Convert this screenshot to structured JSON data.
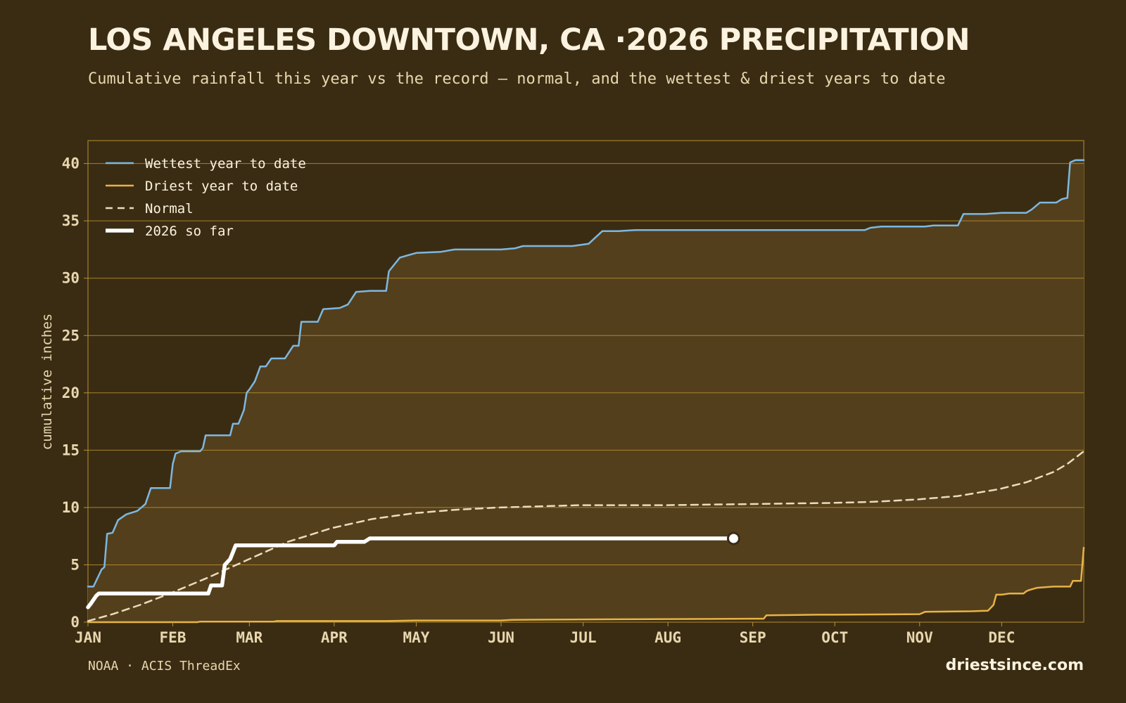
{
  "title": "LOS ANGELES DOWNTOWN, CA ·2026 PRECIPITATION",
  "subtitle": "Cumulative rainfall this year vs the record — normal, and the wettest & driest years to date",
  "footer": {
    "source": "NOAA · ACIS ThreadEx",
    "site": "driestsince.com"
  },
  "colors": {
    "background": "#3a2c13",
    "fill": "#543f1c",
    "wettest": "#7db8e0",
    "driest": "#e6b346",
    "normal": "#eadcbc",
    "current": "#ffffff",
    "grid": "#b8912f"
  },
  "chart_data": {
    "type": "line",
    "ylabel": "cumulative inches",
    "xlim": [
      "JAN 1",
      "DEC 31"
    ],
    "ylim": [
      0,
      42
    ],
    "grid": true,
    "legend_position": "top-left",
    "months": [
      "JAN",
      "FEB",
      "MAR",
      "APR",
      "MAY",
      "JUN",
      "JUL",
      "AUG",
      "SEP",
      "OCT",
      "NOV",
      "DEC"
    ],
    "yticks": [
      "0",
      "5",
      "10",
      "15",
      "20",
      "25",
      "30",
      "35",
      "40"
    ],
    "series": [
      {
        "name": "Wettest year to date",
        "style": "solid",
        "color": "#7db8e0",
        "points": [
          [
            "JAN 1",
            3.1
          ],
          [
            "JAN 3",
            3.1
          ],
          [
            "JAN 6",
            4.6
          ],
          [
            "JAN 7",
            4.8
          ],
          [
            "JAN 8",
            7.7
          ],
          [
            "JAN 10",
            7.8
          ],
          [
            "JAN 12",
            8.9
          ],
          [
            "JAN 15",
            9.4
          ],
          [
            "JAN 19",
            9.7
          ],
          [
            "JAN 22",
            10.3
          ],
          [
            "JAN 24",
            11.7
          ],
          [
            "JAN 31",
            11.7
          ],
          [
            "FEB 1",
            13.8
          ],
          [
            "FEB 2",
            14.7
          ],
          [
            "FEB 4",
            14.9
          ],
          [
            "FEB 11",
            14.9
          ],
          [
            "FEB 12",
            15.2
          ],
          [
            "FEB 13",
            16.3
          ],
          [
            "FEB 22",
            16.3
          ],
          [
            "FEB 23",
            17.3
          ],
          [
            "FEB 25",
            17.3
          ],
          [
            "FEB 27",
            18.5
          ],
          [
            "FEB 28",
            20.0
          ],
          [
            "MAR 1",
            20.3
          ],
          [
            "MAR 3",
            21.0
          ],
          [
            "MAR 5",
            22.3
          ],
          [
            "MAR 7",
            22.3
          ],
          [
            "MAR 9",
            23.0
          ],
          [
            "MAR 14",
            23.0
          ],
          [
            "MAR 17",
            24.1
          ],
          [
            "MAR 19",
            24.1
          ],
          [
            "MAR 20",
            26.2
          ],
          [
            "MAR 26",
            26.2
          ],
          [
            "MAR 28",
            27.3
          ],
          [
            "APR 3",
            27.4
          ],
          [
            "APR 6",
            27.7
          ],
          [
            "APR 9",
            28.8
          ],
          [
            "APR 14",
            28.9
          ],
          [
            "APR 20",
            28.9
          ],
          [
            "APR 21",
            30.6
          ],
          [
            "APR 23",
            31.2
          ],
          [
            "APR 25",
            31.8
          ],
          [
            "APR 28",
            32.0
          ],
          [
            "MAY 1",
            32.2
          ],
          [
            "MAY 10",
            32.3
          ],
          [
            "MAY 15",
            32.5
          ],
          [
            "JUN 1",
            32.5
          ],
          [
            "JUN 6",
            32.6
          ],
          [
            "JUN 9",
            32.8
          ],
          [
            "JUN 27",
            32.8
          ],
          [
            "JUL 3",
            33.0
          ],
          [
            "JUL 8",
            34.1
          ],
          [
            "JUL 14",
            34.1
          ],
          [
            "JUL 20",
            34.2
          ],
          [
            "SEP 1",
            34.2
          ],
          [
            "OCT 1",
            34.2
          ],
          [
            "OCT 12",
            34.2
          ],
          [
            "OCT 14",
            34.4
          ],
          [
            "OCT 18",
            34.5
          ],
          [
            "NOV 3",
            34.5
          ],
          [
            "NOV 6",
            34.6
          ],
          [
            "NOV 15",
            34.6
          ],
          [
            "NOV 17",
            35.6
          ],
          [
            "NOV 25",
            35.6
          ],
          [
            "DEC 1",
            35.7
          ],
          [
            "DEC 10",
            35.7
          ],
          [
            "DEC 12",
            36.0
          ],
          [
            "DEC 15",
            36.6
          ],
          [
            "DEC 21",
            36.6
          ],
          [
            "DEC 23",
            36.9
          ],
          [
            "DEC 25",
            37.0
          ],
          [
            "DEC 26",
            40.1
          ],
          [
            "DEC 28",
            40.3
          ],
          [
            "DEC 31",
            40.3
          ]
        ]
      },
      {
        "name": "Driest year to date",
        "style": "solid",
        "color": "#e6b346",
        "points": [
          [
            "JAN 1",
            0.0
          ],
          [
            "FEB 10",
            0.0
          ],
          [
            "FEB 11",
            0.05
          ],
          [
            "MAR 10",
            0.05
          ],
          [
            "MAR 11",
            0.1
          ],
          [
            "APR 20",
            0.1
          ],
          [
            "MAY 1",
            0.15
          ],
          [
            "JUN 1",
            0.15
          ],
          [
            "JUN 5",
            0.2
          ],
          [
            "JUL 15",
            0.25
          ],
          [
            "AUG 31",
            0.3
          ],
          [
            "SEP 5",
            0.3
          ],
          [
            "SEP 6",
            0.6
          ],
          [
            "SEP 25",
            0.65
          ],
          [
            "OCT 1",
            0.65
          ],
          [
            "NOV 1",
            0.7
          ],
          [
            "NOV 3",
            0.9
          ],
          [
            "NOV 20",
            0.95
          ],
          [
            "NOV 26",
            1.0
          ],
          [
            "NOV 28",
            1.5
          ],
          [
            "NOV 29",
            2.4
          ],
          [
            "DEC 1",
            2.4
          ],
          [
            "DEC 4",
            2.5
          ],
          [
            "DEC 9",
            2.5
          ],
          [
            "DEC 10",
            2.7
          ],
          [
            "DEC 11",
            2.8
          ],
          [
            "DEC 14",
            3.0
          ],
          [
            "DEC 20",
            3.1
          ],
          [
            "DEC 26",
            3.1
          ],
          [
            "DEC 27",
            3.6
          ],
          [
            "DEC 30",
            3.6
          ],
          [
            "DEC 31",
            6.5
          ]
        ]
      },
      {
        "name": "Normal",
        "style": "dashed",
        "color": "#eadcbc",
        "points": [
          [
            "JAN 1",
            0.1
          ],
          [
            "JAN 10",
            0.7
          ],
          [
            "JAN 20",
            1.5
          ],
          [
            "JAN 31",
            2.5
          ],
          [
            "FEB 14",
            3.9
          ],
          [
            "FEB 28",
            5.4
          ],
          [
            "MAR 15",
            7.0
          ],
          [
            "MAR 31",
            8.2
          ],
          [
            "APR 15",
            9.0
          ],
          [
            "APR 30",
            9.5
          ],
          [
            "MAY 15",
            9.8
          ],
          [
            "MAY 31",
            10.0
          ],
          [
            "JUN 30",
            10.2
          ],
          [
            "JUL 31",
            10.2
          ],
          [
            "AUG 31",
            10.3
          ],
          [
            "SEP 30",
            10.4
          ],
          [
            "OCT 15",
            10.5
          ],
          [
            "OCT 31",
            10.7
          ],
          [
            "NOV 15",
            11.0
          ],
          [
            "NOV 30",
            11.6
          ],
          [
            "DEC 10",
            12.2
          ],
          [
            "DEC 20",
            13.1
          ],
          [
            "DEC 25",
            13.8
          ],
          [
            "DEC 31",
            14.9
          ]
        ]
      },
      {
        "name": "2026 so far",
        "style": "solid",
        "color": "#ffffff",
        "points": [
          [
            "JAN 1",
            1.3
          ],
          [
            "JAN 2",
            1.6
          ],
          [
            "JAN 4",
            2.3
          ],
          [
            "JAN 5",
            2.5
          ],
          [
            "FEB 12",
            2.5
          ],
          [
            "FEB 14",
            2.5
          ],
          [
            "FEB 15",
            3.2
          ],
          [
            "FEB 19",
            3.2
          ],
          [
            "FEB 20",
            5.0
          ],
          [
            "FEB 22",
            5.5
          ],
          [
            "FEB 24",
            6.7
          ],
          [
            "MAR 20",
            6.7
          ],
          [
            "APR 1",
            6.7
          ],
          [
            "APR 2",
            7.0
          ],
          [
            "APR 12",
            7.0
          ],
          [
            "APR 14",
            7.3
          ],
          [
            "AUG 25",
            7.3
          ]
        ]
      }
    ],
    "current_marker": {
      "date": "AUG 25",
      "value": 7.3
    }
  }
}
